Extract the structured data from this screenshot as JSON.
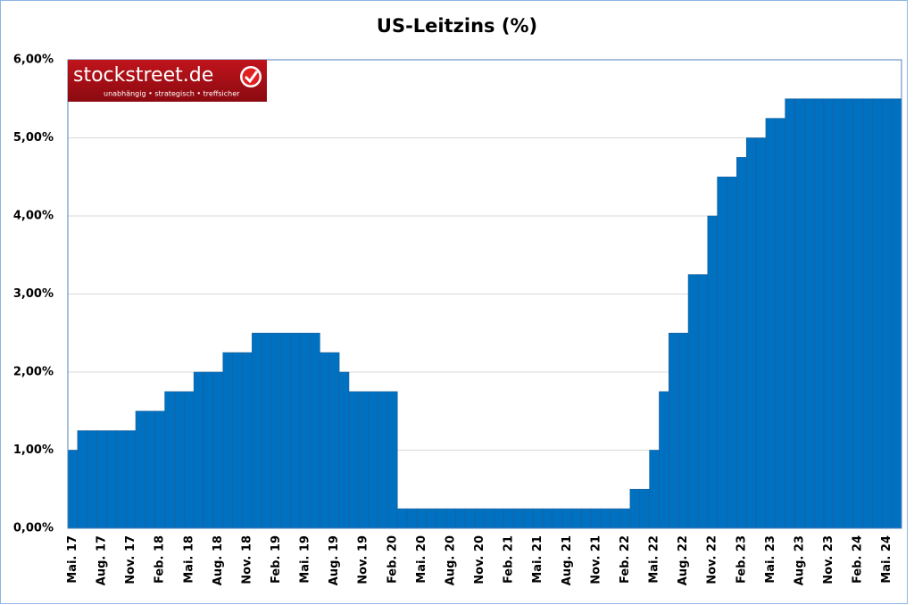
{
  "chart_data": {
    "type": "bar",
    "title": "US-Leitzins (%)",
    "categories": [
      "Mai. 17",
      null,
      null,
      "Aug. 17",
      null,
      null,
      "Nov. 17",
      null,
      null,
      "Feb. 18",
      null,
      null,
      "Mai. 18",
      null,
      null,
      "Aug. 18",
      null,
      null,
      "Nov. 18",
      null,
      null,
      "Feb. 19",
      null,
      null,
      "Mai. 19",
      null,
      null,
      "Aug. 19",
      null,
      null,
      "Nov. 19",
      null,
      null,
      "Feb. 20",
      null,
      null,
      "Mai. 20",
      null,
      null,
      "Aug. 20",
      null,
      null,
      "Nov. 20",
      null,
      null,
      "Feb. 21",
      null,
      null,
      "Mai. 21",
      null,
      null,
      "Aug. 21",
      null,
      null,
      "Nov. 21",
      null,
      null,
      "Feb. 22",
      null,
      null,
      "Mai. 22",
      null,
      null,
      "Aug. 22",
      null,
      null,
      "Nov. 22",
      null,
      null,
      "Feb. 23",
      null,
      null,
      "Mai. 23",
      null,
      null,
      "Aug. 23",
      null,
      null,
      "Nov. 23",
      null,
      null,
      "Feb. 24",
      null,
      null,
      "Mai. 24",
      null
    ],
    "values": [
      1.0,
      1.25,
      1.25,
      1.25,
      1.25,
      1.25,
      1.25,
      1.5,
      1.5,
      1.5,
      1.75,
      1.75,
      1.75,
      2.0,
      2.0,
      2.0,
      2.25,
      2.25,
      2.25,
      2.5,
      2.5,
      2.5,
      2.5,
      2.5,
      2.5,
      2.5,
      2.25,
      2.25,
      2.0,
      1.75,
      1.75,
      1.75,
      1.75,
      1.75,
      0.25,
      0.25,
      0.25,
      0.25,
      0.25,
      0.25,
      0.25,
      0.25,
      0.25,
      0.25,
      0.25,
      0.25,
      0.25,
      0.25,
      0.25,
      0.25,
      0.25,
      0.25,
      0.25,
      0.25,
      0.25,
      0.25,
      0.25,
      0.25,
      0.5,
      0.5,
      1.0,
      1.75,
      2.5,
      2.5,
      3.25,
      3.25,
      4.0,
      4.5,
      4.5,
      4.75,
      5.0,
      5.0,
      5.25,
      5.25,
      5.5,
      5.5,
      5.5,
      5.5,
      5.5,
      5.5,
      5.5,
      5.5,
      5.5,
      5.5,
      5.5,
      5.5
    ],
    "color": "#0070c0",
    "ylim": [
      0,
      6
    ],
    "yticks": [
      {
        "value": 0,
        "label": "0,00%"
      },
      {
        "value": 1,
        "label": "1,00%"
      },
      {
        "value": 2,
        "label": "2,00%"
      },
      {
        "value": 3,
        "label": "3,00%"
      },
      {
        "value": 4,
        "label": "4,00%"
      },
      {
        "value": 5,
        "label": "5,00%"
      },
      {
        "value": 6,
        "label": "6,00%"
      }
    ],
    "grid": true
  },
  "logo": {
    "name": "stockstreet.de",
    "tagline": "unabhängig • strategisch • treffsicher"
  }
}
